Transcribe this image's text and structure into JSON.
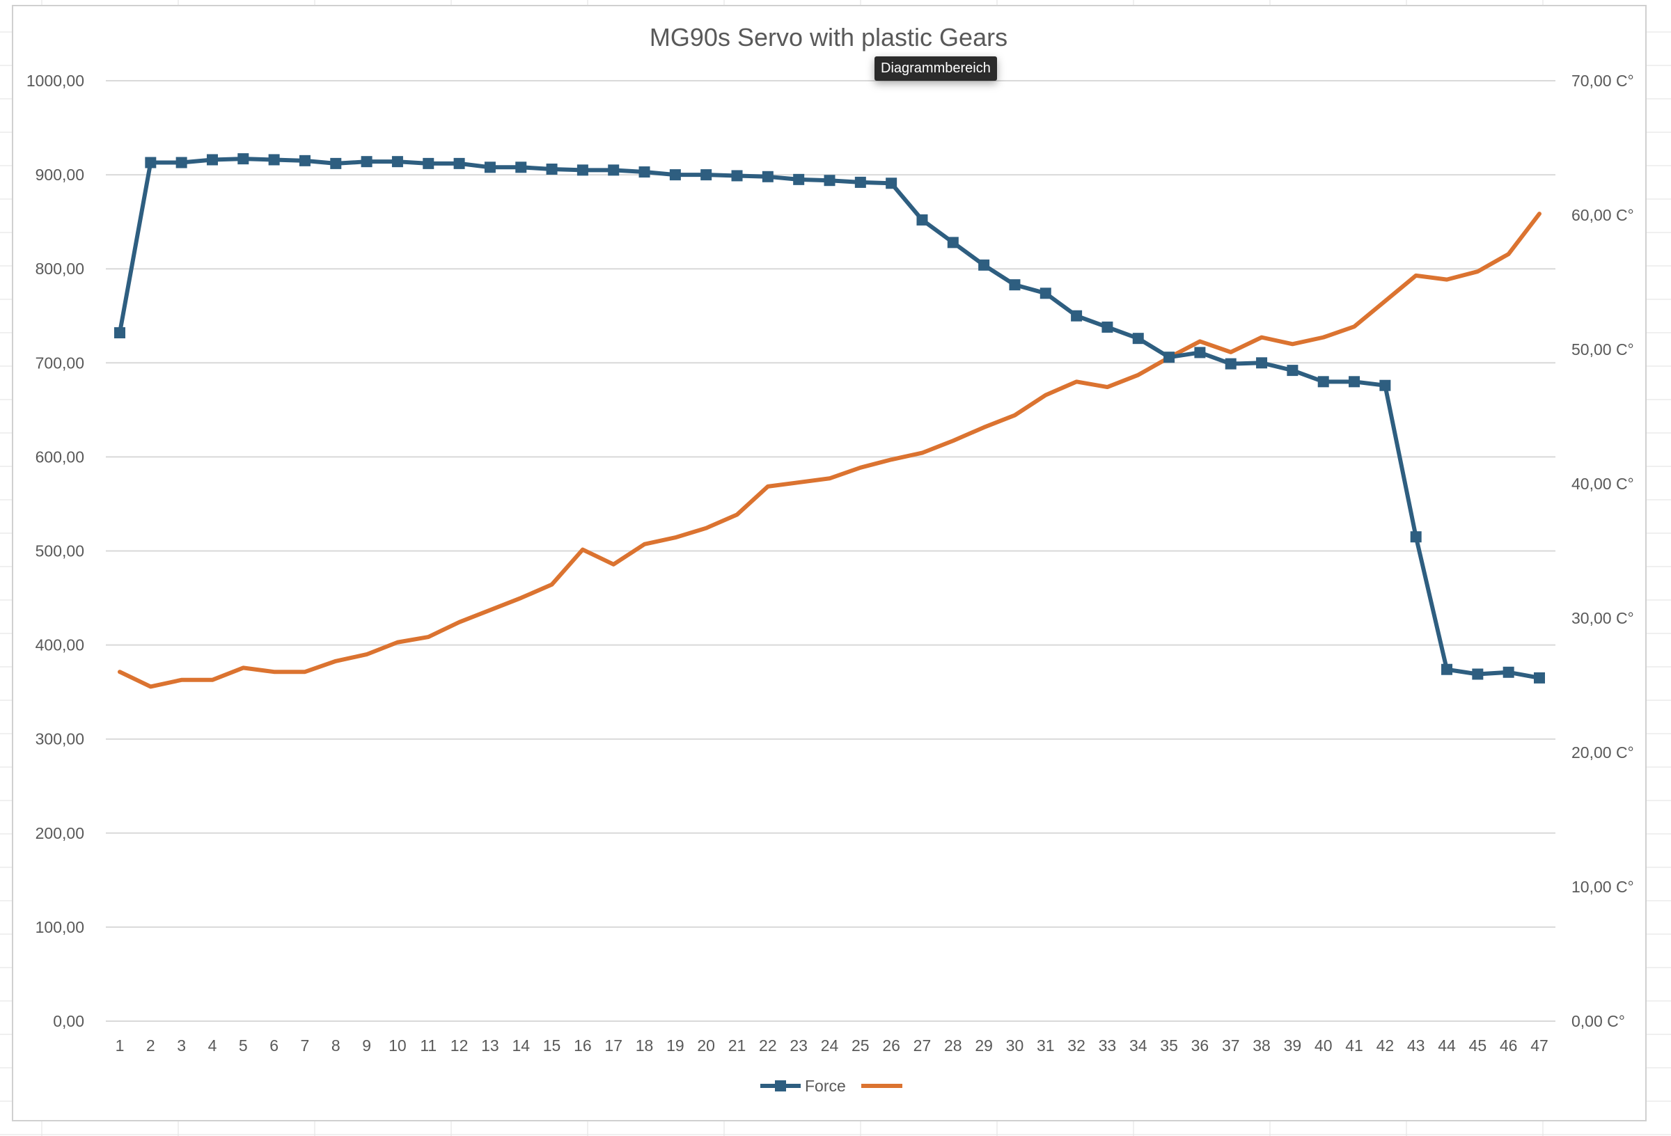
{
  "colors": {
    "force": "#2e5e80",
    "temperature": "#db7330",
    "gridline": "#d9d9d9",
    "axis_text": "#595959",
    "title_text": "#595959",
    "sheet_grid": "#e2e2e2",
    "chart_border": "#d0d0d0"
  },
  "tooltip": {
    "label": "Diagrammbereich"
  },
  "chart_data": {
    "type": "line",
    "title": "MG90s Servo with plastic Gears",
    "categories": [
      "1",
      "2",
      "3",
      "4",
      "5",
      "6",
      "7",
      "8",
      "9",
      "10",
      "11",
      "12",
      "13",
      "14",
      "15",
      "16",
      "17",
      "18",
      "19",
      "20",
      "21",
      "22",
      "23",
      "24",
      "25",
      "26",
      "27",
      "28",
      "29",
      "30",
      "31",
      "32",
      "33",
      "34",
      "35",
      "36",
      "37",
      "38",
      "39",
      "40",
      "41",
      "42",
      "43",
      "44",
      "45",
      "46",
      "47"
    ],
    "series": [
      {
        "name": "Force",
        "axis": "left",
        "marker": "square",
        "values": [
          732,
          913,
          913,
          916,
          917,
          916,
          915,
          912,
          914,
          914,
          912,
          912,
          908,
          908,
          906,
          905,
          905,
          903,
          900,
          900,
          899,
          898,
          895,
          894,
          892,
          891,
          852,
          828,
          804,
          783,
          774,
          750,
          738,
          726,
          706,
          711,
          699,
          700,
          692,
          680,
          680,
          676,
          515,
          374,
          369,
          371,
          365
        ]
      },
      {
        "name": "",
        "axis": "right",
        "marker": "none",
        "values": [
          26.0,
          24.9,
          25.4,
          25.4,
          26.3,
          26.0,
          26.0,
          26.8,
          27.3,
          28.2,
          28.6,
          29.7,
          30.6,
          31.5,
          32.5,
          35.1,
          34.0,
          35.5,
          36.0,
          36.7,
          37.7,
          39.8,
          40.1,
          40.4,
          41.2,
          41.8,
          42.3,
          43.2,
          44.2,
          45.1,
          46.6,
          47.6,
          47.2,
          48.1,
          49.4,
          50.6,
          49.8,
          50.9,
          50.4,
          50.9,
          51.7,
          53.6,
          55.5,
          55.2,
          55.8,
          57.1,
          60.1
        ]
      }
    ],
    "y_left": {
      "min": 0,
      "max": 1000,
      "ticks": [
        "0,00",
        "100,00",
        "200,00",
        "300,00",
        "400,00",
        "500,00",
        "600,00",
        "700,00",
        "800,00",
        "900,00",
        "1000,00"
      ]
    },
    "y_right": {
      "min": 0,
      "max": 70,
      "ticks": [
        "0,00 C°",
        "10,00 C°",
        "20,00 C°",
        "30,00 C°",
        "40,00 C°",
        "50,00 C°",
        "60,00 C°",
        "70,00 C°"
      ]
    },
    "grid": true,
    "legend": {
      "position": "bottom",
      "entries": [
        "Force",
        ""
      ]
    }
  }
}
